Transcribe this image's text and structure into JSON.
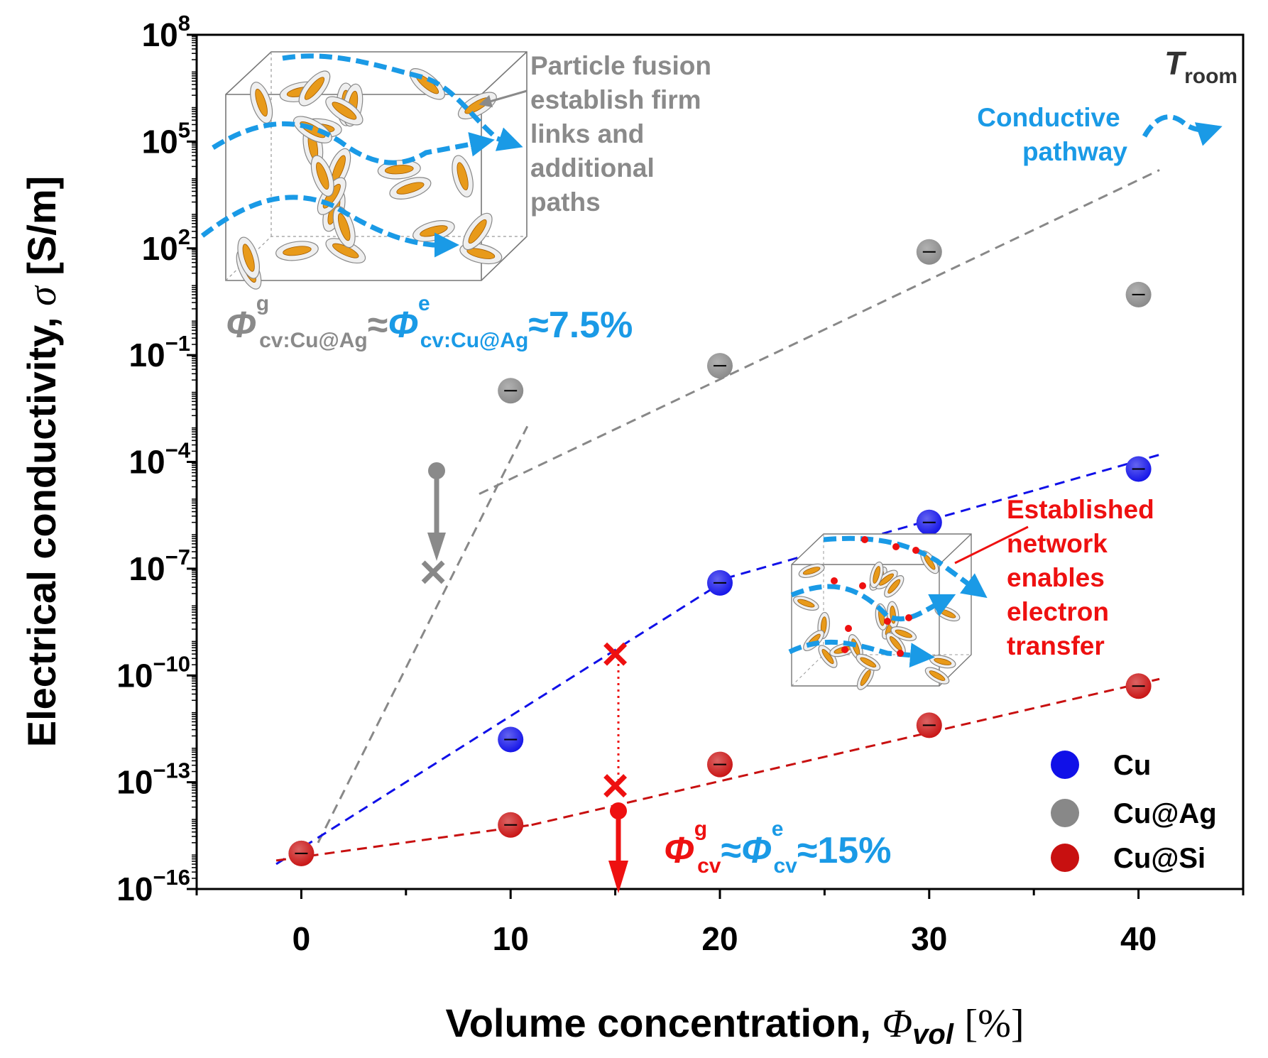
{
  "chart_data": {
    "type": "scatter",
    "xlabel": "Volume concentration,",
    "xlabel_symbol": "Φ",
    "xlabel_subscript": "vol",
    "xlabel_unit": "[%]",
    "ylabel": "Electrical conductivity,",
    "ylabel_symbol": "σ",
    "ylabel_unit": "[S/m]",
    "x_ticks": [
      0,
      10,
      20,
      30,
      40
    ],
    "x_tick_labels": [
      "0",
      "10",
      "20",
      "30",
      "40"
    ],
    "xlim": [
      -5,
      45
    ],
    "y_scale": "log",
    "y_tick_exponents": [
      -16,
      -13,
      -10,
      -7,
      -4,
      -1,
      2,
      5,
      8
    ],
    "y_tick_labels": [
      "10",
      "10",
      "10",
      "10",
      "10",
      "10",
      "10",
      "10",
      "10"
    ],
    "y_tick_sup": [
      "−16",
      "−13",
      "−10",
      "−7",
      "−4",
      "−1",
      "2",
      "5",
      "8"
    ],
    "ylim_exponent": [
      -16,
      8
    ],
    "series": [
      {
        "name": "Cu",
        "color": "#1010e8",
        "x": [
          10,
          20,
          30,
          40
        ],
        "log10_y": [
          -11.8,
          -7.4,
          -5.7,
          -4.2
        ]
      },
      {
        "name": "Cu@Ag",
        "color": "#888888",
        "x": [
          0,
          10,
          20,
          30,
          40
        ],
        "log10_y": [
          -15.0,
          -2.0,
          -1.3,
          1.9,
          0.7
        ]
      },
      {
        "name": "Cu@Si",
        "color": "#c81010",
        "x": [
          0,
          10,
          20,
          30,
          40
        ],
        "log10_y": [
          -15.0,
          -14.2,
          -12.5,
          -11.4,
          -10.3
        ]
      }
    ],
    "trend_lines": [
      {
        "name": "Cu@Ag low",
        "color": "#888888",
        "x": [
          0.8,
          10.8
        ],
        "log10_y": [
          -14.7,
          -3.0
        ]
      },
      {
        "name": "Cu@Ag high",
        "color": "#888888",
        "x": [
          8.5,
          41
        ],
        "log10_y": [
          -4.9,
          4.2
        ]
      },
      {
        "name": "Cu low",
        "color": "#1010e8",
        "x": [
          -1.2,
          19.8
        ],
        "log10_y": [
          -15.3,
          -7.5
        ]
      },
      {
        "name": "Cu high",
        "color": "#1010e8",
        "x": [
          19.5,
          41
        ],
        "log10_y": [
          -7.4,
          -3.8
        ]
      },
      {
        "name": "Cu@Si low",
        "color": "#c81010",
        "x": [
          -1.2,
          11
        ],
        "log10_y": [
          -15.2,
          -14.2
        ]
      },
      {
        "name": "Cu@Si high",
        "color": "#c81010",
        "x": [
          11,
          41
        ],
        "log10_y": [
          -14.2,
          -10.1
        ]
      }
    ],
    "crossing_markers": [
      {
        "name": "Cu@Ag crossing",
        "color": "#888888",
        "x": 6.3,
        "log10_y": -7.1
      },
      {
        "name": "Cu crossing",
        "color": "#ee1010",
        "x": 15,
        "log10_y": -9.4
      },
      {
        "name": "Cu@Si crossing",
        "color": "#ee1010",
        "x": 15,
        "log10_y": -13.1
      }
    ],
    "legend": {
      "position": "bottom-right",
      "entries": [
        "Cu",
        "Cu@Ag",
        "Cu@Si"
      ]
    },
    "annotations": {
      "troom_main": "T",
      "troom_sub": "room",
      "fusion_lines": [
        "Particle fusion",
        "establish firm",
        "links and",
        "additional",
        "paths"
      ],
      "pathway_lines": [
        "Conductive",
        "pathway"
      ],
      "network_lines": [
        "Established",
        "network",
        "enables",
        "electron",
        "transfer"
      ],
      "ag_threshold": {
        "phi": "Φ",
        "sup_g": "g",
        "sub_g": "cv:Cu@Ag",
        "approx": "≈",
        "sup_e": "e",
        "sub_e": "cv:Cu@Ag",
        "value": "≈7.5%"
      },
      "cu_threshold": {
        "phi": "Φ",
        "sup_g": "g",
        "sub_g": "cv",
        "approx": "≈",
        "sup_e": "e",
        "sub_e": "cv",
        "value": "≈15%"
      }
    },
    "colors": {
      "pathway": "#1a9ae6",
      "gray_text": "#8a8a8a",
      "red_text": "#ee1010",
      "particle_fill": "#e89a1a"
    }
  }
}
